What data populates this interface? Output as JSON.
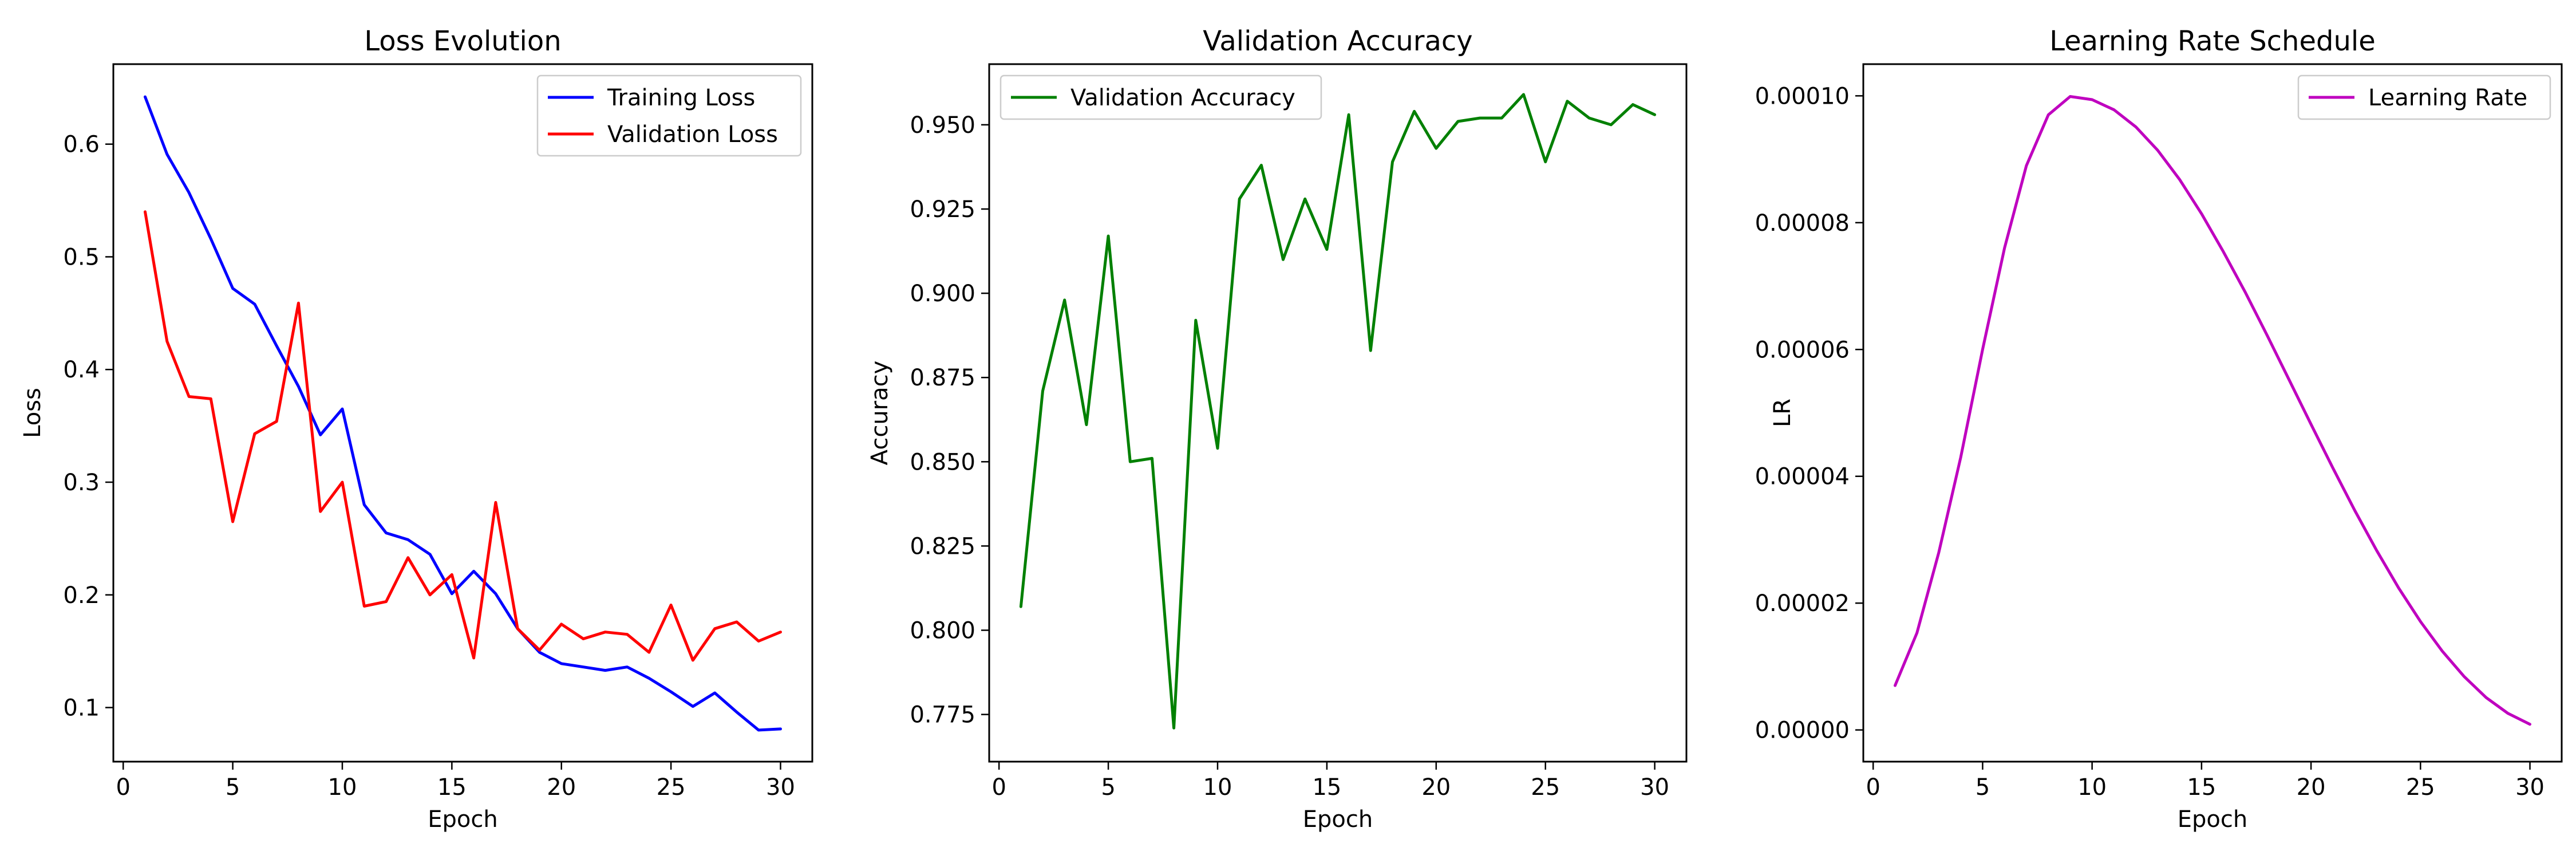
{
  "chart_data": [
    {
      "type": "line",
      "title": "Loss Evolution",
      "xlabel": "Epoch",
      "ylabel": "Loss",
      "xlim": [
        -0.45,
        31.45
      ],
      "ylim": [
        0.052,
        0.671
      ],
      "xticks": [
        0,
        5,
        10,
        15,
        20,
        25,
        30
      ],
      "yticks": [
        0.1,
        0.2,
        0.3,
        0.4,
        0.5,
        0.6
      ],
      "ytick_format": 1,
      "legend_position": "top-right",
      "grid": false,
      "x": [
        1,
        2,
        3,
        4,
        5,
        6,
        7,
        8,
        9,
        10,
        11,
        12,
        13,
        14,
        15,
        16,
        17,
        18,
        19,
        20,
        21,
        22,
        23,
        24,
        25,
        26,
        27,
        28,
        29,
        30
      ],
      "series": [
        {
          "name": "Training Loss",
          "color": "#0000ff",
          "values": [
            0.642,
            0.591,
            0.557,
            0.516,
            0.472,
            0.458,
            0.421,
            0.385,
            0.342,
            0.365,
            0.28,
            0.255,
            0.249,
            0.236,
            0.201,
            0.221,
            0.201,
            0.17,
            0.149,
            0.139,
            0.136,
            0.133,
            0.136,
            0.126,
            0.114,
            0.101,
            0.113,
            0.096,
            0.08,
            0.081
          ]
        },
        {
          "name": "Validation Loss",
          "color": "#ff0000",
          "values": [
            0.54,
            0.425,
            0.376,
            0.374,
            0.265,
            0.343,
            0.354,
            0.459,
            0.274,
            0.3,
            0.19,
            0.194,
            0.233,
            0.2,
            0.218,
            0.144,
            0.282,
            0.17,
            0.151,
            0.174,
            0.161,
            0.167,
            0.165,
            0.149,
            0.191,
            0.142,
            0.17,
            0.176,
            0.159,
            0.167
          ]
        }
      ]
    },
    {
      "type": "line",
      "title": "Validation Accuracy",
      "xlabel": "Epoch",
      "ylabel": "Accuracy",
      "xlim": [
        -0.45,
        31.45
      ],
      "ylim": [
        0.761,
        0.968
      ],
      "xticks": [
        0,
        5,
        10,
        15,
        20,
        25,
        30
      ],
      "yticks": [
        0.775,
        0.8,
        0.825,
        0.85,
        0.875,
        0.9,
        0.925,
        0.95
      ],
      "ytick_format": 3,
      "legend_position": "top-left",
      "grid": false,
      "x": [
        1,
        2,
        3,
        4,
        5,
        6,
        7,
        8,
        9,
        10,
        11,
        12,
        13,
        14,
        15,
        16,
        17,
        18,
        19,
        20,
        21,
        22,
        23,
        24,
        25,
        26,
        27,
        28,
        29,
        30
      ],
      "series": [
        {
          "name": "Validation Accuracy",
          "color": "#008000",
          "values": [
            0.807,
            0.871,
            0.898,
            0.861,
            0.917,
            0.85,
            0.851,
            0.771,
            0.892,
            0.854,
            0.928,
            0.938,
            0.91,
            0.928,
            0.913,
            0.953,
            0.883,
            0.939,
            0.954,
            0.943,
            0.951,
            0.952,
            0.952,
            0.959,
            0.939,
            0.957,
            0.952,
            0.95,
            0.956,
            0.953
          ]
        }
      ]
    },
    {
      "type": "line",
      "title": "Learning Rate Schedule",
      "xlabel": "Epoch",
      "ylabel": "LR",
      "xlim": [
        -0.45,
        31.45
      ],
      "ylim": [
        -5e-06,
        0.000105
      ],
      "xticks": [
        0,
        5,
        10,
        15,
        20,
        25,
        30
      ],
      "yticks": [
        0.0,
        2e-05,
        4e-05,
        6e-05,
        8e-05,
        0.0001
      ],
      "ytick_format": 5,
      "legend_position": "top-right",
      "grid": false,
      "x": [
        1,
        2,
        3,
        4,
        5,
        6,
        7,
        8,
        9,
        10,
        11,
        12,
        13,
        14,
        15,
        16,
        17,
        18,
        19,
        20,
        21,
        22,
        23,
        24,
        25,
        26,
        27,
        28,
        29,
        30
      ],
      "series": [
        {
          "name": "Learning Rate",
          "color": "#bf00bf",
          "values": [
            7e-06,
            1.53e-05,
            2.8e-05,
            4.3e-05,
            6e-05,
            7.6e-05,
            8.9e-05,
            9.7e-05,
            9.99e-05,
            9.94e-05,
            9.78e-05,
            9.51e-05,
            9.14e-05,
            8.68e-05,
            8.14e-05,
            7.54e-05,
            6.9e-05,
            6.22e-05,
            5.52e-05,
            4.82e-05,
            4.13e-05,
            3.46e-05,
            2.83e-05,
            2.24e-05,
            1.71e-05,
            1.24e-05,
            8.4e-06,
            5.1e-06,
            2.6e-06,
            9e-07
          ]
        }
      ]
    }
  ]
}
